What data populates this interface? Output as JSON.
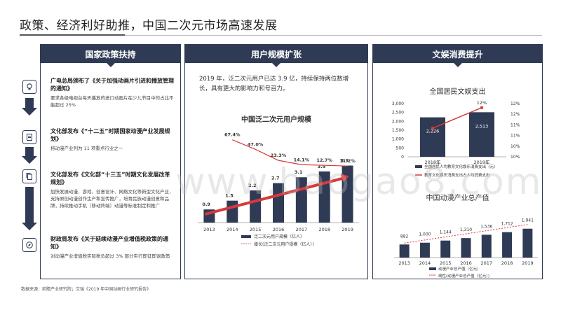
{
  "title": "政策、经济利好助推，中国二次元市场高速发展",
  "panels": {
    "policy": {
      "header": "国家政策扶持",
      "items": [
        {
          "heading": "广电总局颁布了《关于加强动画片引进和播放管理的通知》",
          "detail": "要求各级电视台每天播放的进口动画片在少儿节目中的占比不能超过 25%",
          "icon": "lightbulb-icon"
        },
        {
          "heading": "文化部发布《“十二五”时期国家动漫产业发展规划》",
          "detail": "将动漫产业列为 11 项重点行业之一",
          "icon": "document-icon"
        },
        {
          "heading": "文化部发布《文化部“十三五”时期文化发展改革规划》",
          "detail": "加快发展动漫、游戏、创意设计、网络文化等新型文化产业，支持原创动漫创作生产和宣传推广，培育民族动漫创意和品牌，持续推动手机（移动终端）动漫等标准制定和推广",
          "icon": "copy-icon"
        },
        {
          "heading": "财政局发布《关于延续动漫产业增值税政策的通知》",
          "detail": "对动漫产业增值税实际税负超过 3% 部分实行即征即退政策",
          "icon": "compass-icon"
        }
      ]
    },
    "users": {
      "header": "用户规模扩张",
      "intro": "2019 年，泛二次元用户已达 3.9 亿，持续保持两位数增长，具有更大的影响力和号召力。"
    },
    "consumption": {
      "header": "文娱消费提升"
    }
  },
  "chart_data": [
    {
      "type": "bar",
      "title": "中国泛二次元用户规模",
      "categories": [
        "2013",
        "2014",
        "2015",
        "2016",
        "2017",
        "2018",
        "2019"
      ],
      "series": [
        {
          "name": "泛二次元用户规模（亿人）",
          "values": [
            0.9,
            1.5,
            2.2,
            2.7,
            3.1,
            3.5,
            3.9
          ],
          "color": "#2f3b55"
        },
        {
          "name": "泛二次元用户规模增长率",
          "type": "line",
          "values": [
            null,
            67.4,
            47.0,
            23.3,
            14.1,
            12.7,
            11.2
          ],
          "labels": [
            "",
            "67.4%",
            "47.0%",
            "23.3%",
            "14.1%",
            "12.7%",
            "11.2%"
          ],
          "color": "#d6393a"
        }
      ],
      "legend": [
        "泛二次元用户规模（亿人）",
        "增长(泛二次元用户规模（亿人）)"
      ],
      "ylim": [
        0,
        4.5
      ]
    },
    {
      "type": "bar",
      "title": "全国居民文娱支出",
      "categories": [
        "2018年",
        "2019年"
      ],
      "series": [
        {
          "name": "全国居民人均教育文化娱乐消费支出（元）",
          "values": [
            2226,
            2513
          ],
          "labels": [
            "2,226",
            "2,513"
          ],
          "color": "#2f3b55"
        },
        {
          "name": "教育文化娱乐消费支出占人均消费支出",
          "type": "line",
          "values": [
            11,
            12
          ],
          "labels": [
            "11%",
            "12%"
          ],
          "color": "#d6393a"
        }
      ],
      "yticks_left": [
        "3,000",
        "2,500",
        "2,000",
        "1,500",
        "1,000",
        "500",
        "0"
      ],
      "yticks_right": [
        "12%",
        "12%",
        "11%",
        "11%",
        "10%",
        "10%"
      ],
      "ylim": [
        0,
        3000
      ]
    },
    {
      "type": "bar",
      "title": "中国动漫产业总产值",
      "categories": [
        "2013",
        "2014",
        "2015",
        "2016",
        "2017",
        "2018",
        "2019"
      ],
      "series": [
        {
          "name": "动漫产业总产值（亿元）",
          "values": [
            882,
            1000,
            1144,
            1310,
            1536,
            1712,
            1941
          ],
          "labels": [
            "882",
            "1,000",
            "1,144",
            "1,310",
            "1,536",
            "1,712",
            "1,941"
          ],
          "color": "#2f3b55"
        },
        {
          "name": "线性(动漫产业总产值（亿元）)",
          "type": "trend",
          "color": "#d6393a"
        }
      ],
      "ylim": [
        0,
        2100
      ]
    }
  ],
  "source": "数据来源：前瞻产业研究院；艾瑞《2019 年中国动画行业研究报告》",
  "watermark": "www.baogao8.com"
}
